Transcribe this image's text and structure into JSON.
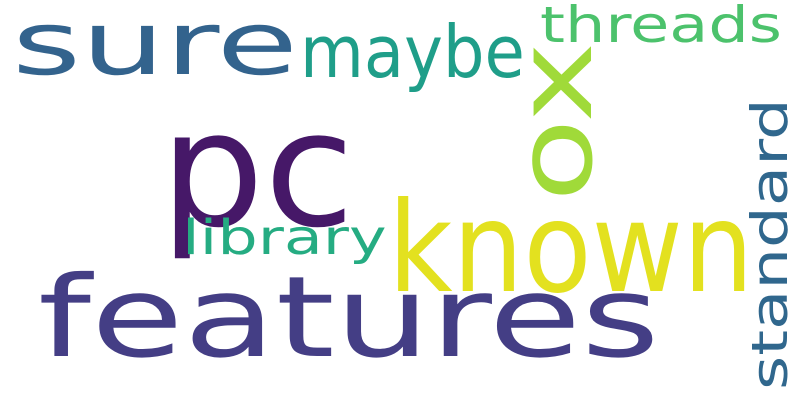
{
  "words": [
    {
      "key": "features",
      "text": "features",
      "color": "#443e85"
    },
    {
      "key": "known",
      "text": "known",
      "color": "#e3e11f"
    },
    {
      "key": "pc",
      "text": "pc",
      "color": "#461868"
    },
    {
      "key": "sure",
      "text": "sure",
      "color": "#33638d"
    },
    {
      "key": "ox",
      "text": "ox",
      "color": "#a0da39"
    },
    {
      "key": "maybe",
      "text": "maybe",
      "color": "#1f9e89"
    },
    {
      "key": "standard",
      "text": "standard",
      "color": "#30678d"
    },
    {
      "key": "threads",
      "text": "threads",
      "color": "#4cc26c"
    },
    {
      "key": "library",
      "text": "library",
      "color": "#25ac82"
    }
  ]
}
